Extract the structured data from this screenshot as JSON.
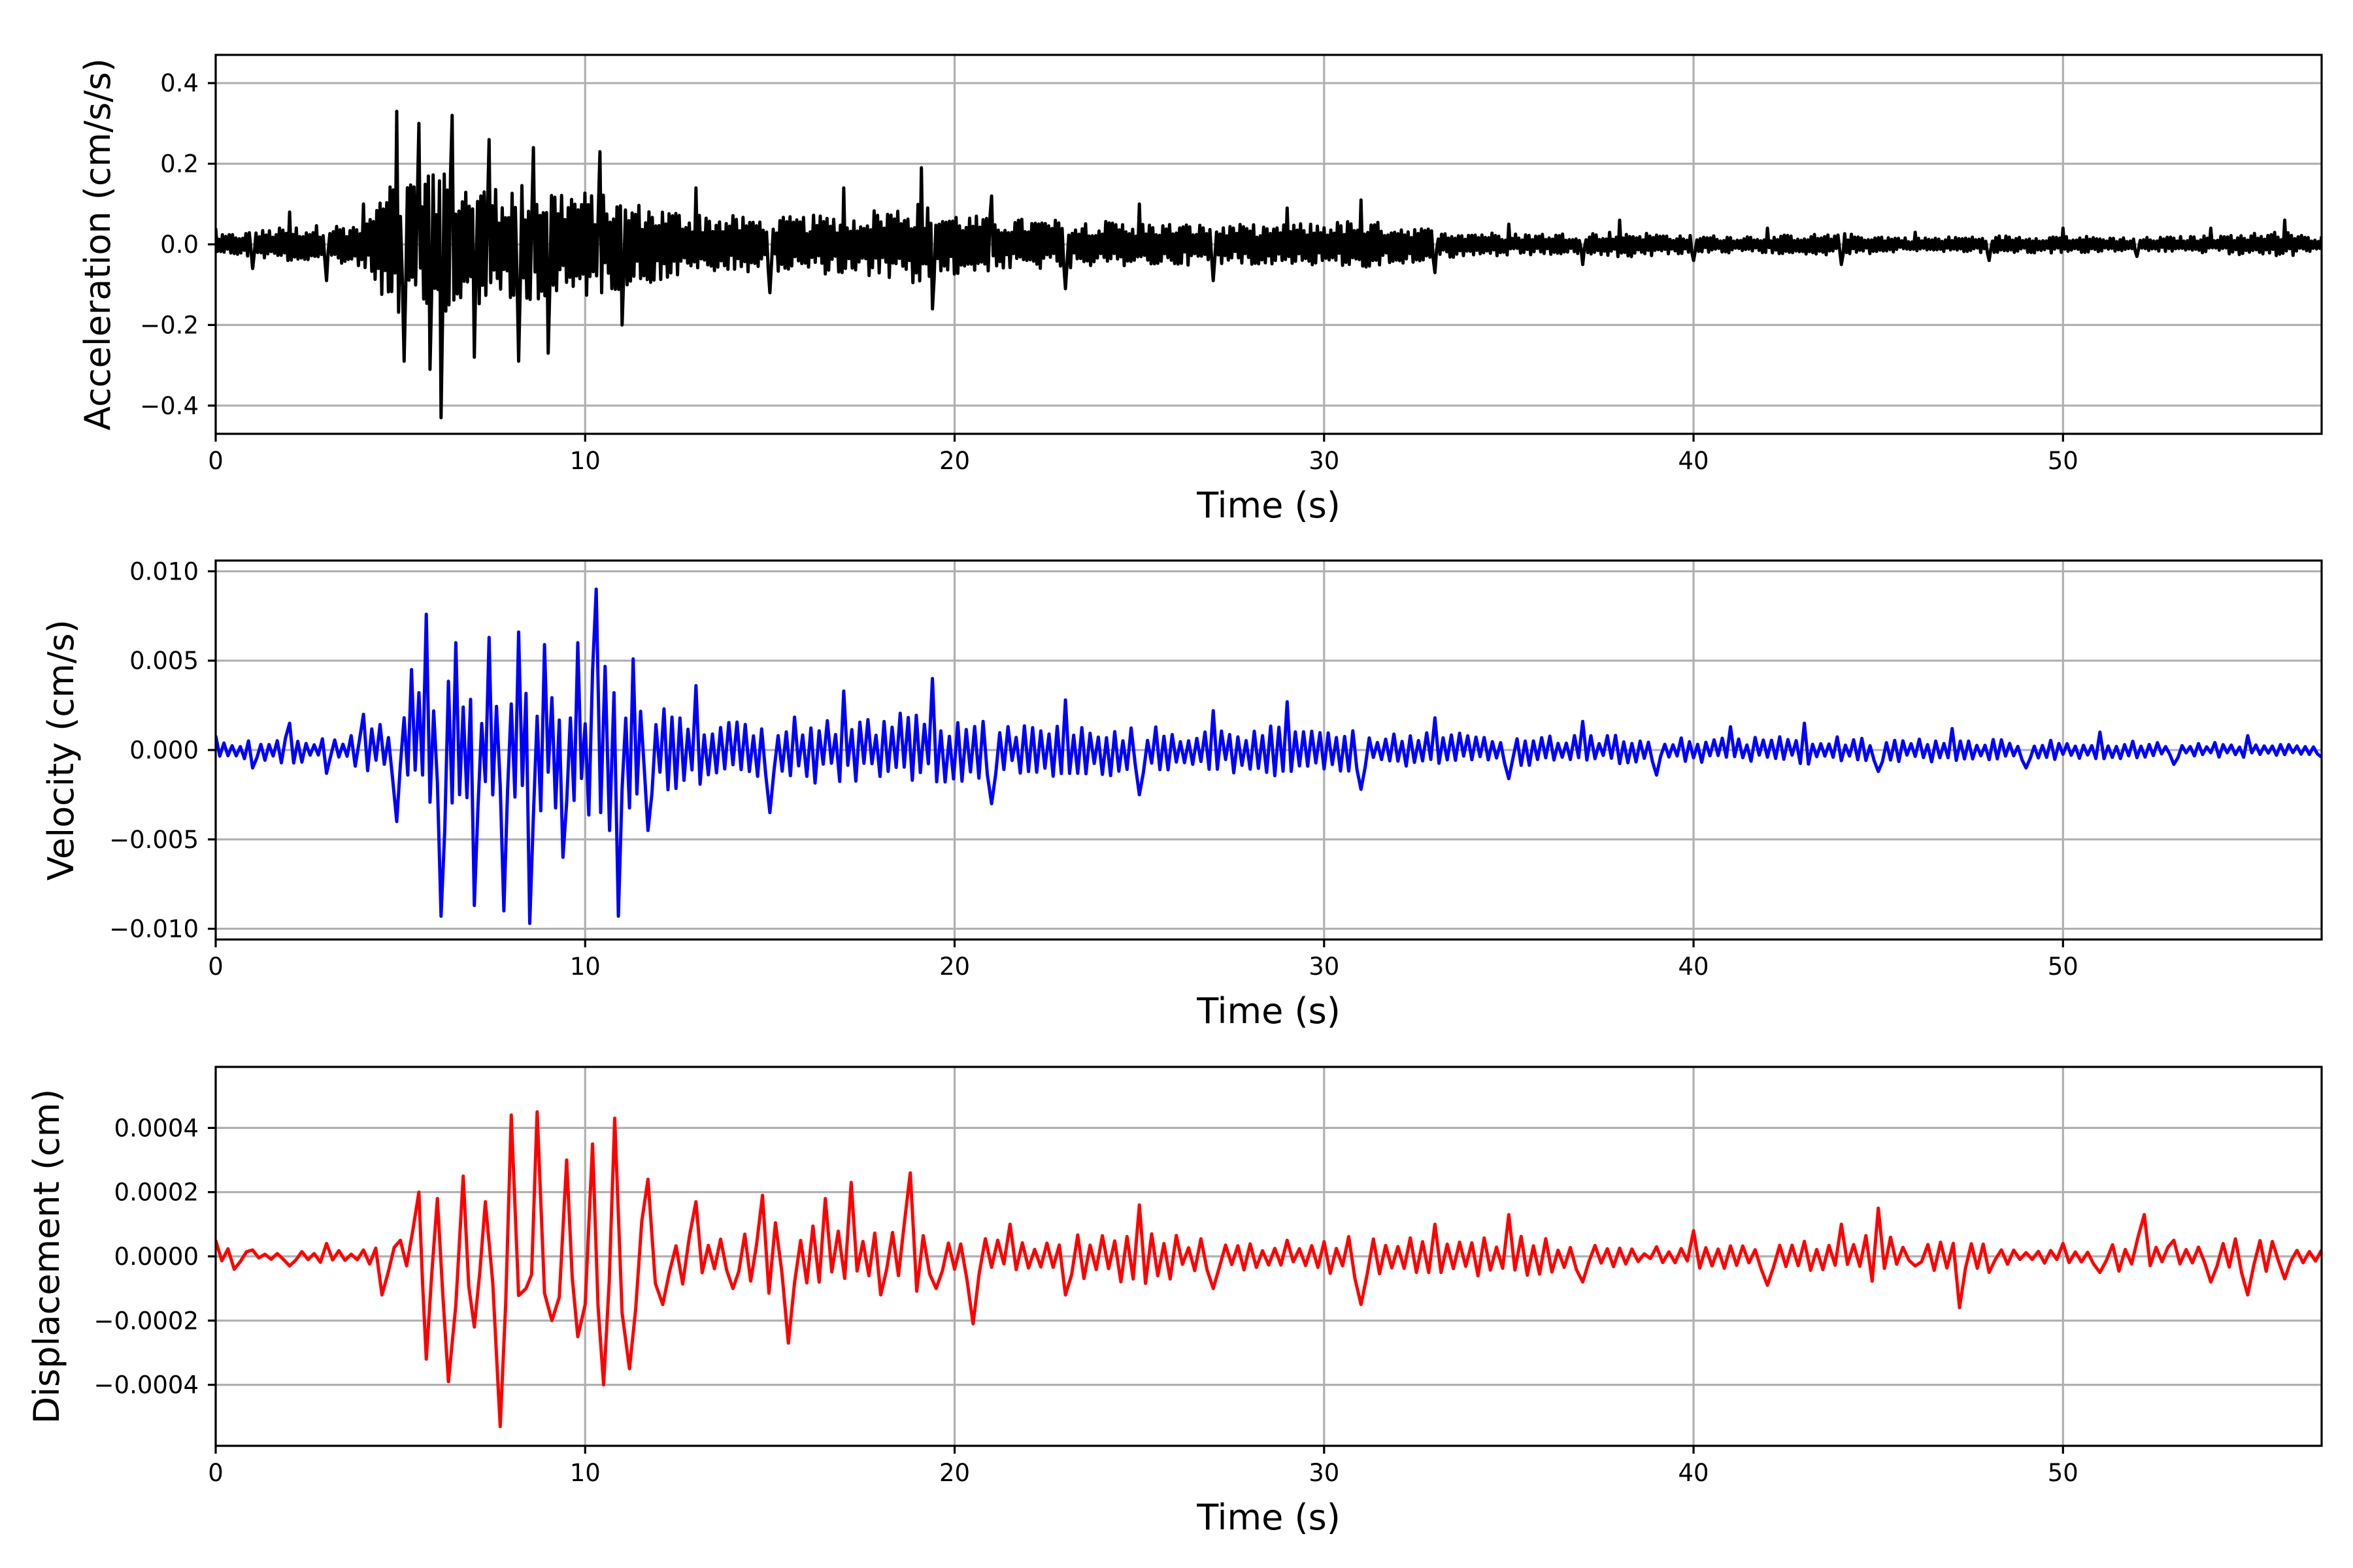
{
  "chart_data": [
    {
      "type": "line",
      "xlabel": "Time (s)",
      "ylabel": "Acceleration (cm/s/s)",
      "xlim": [
        0,
        57
      ],
      "ylim": [
        -0.47,
        0.47
      ],
      "xticks": [
        0,
        10,
        20,
        30,
        40,
        50
      ],
      "xtick_labels": [
        "0",
        "10",
        "20",
        "30",
        "40",
        "50"
      ],
      "yticks": [
        -0.4,
        -0.2,
        0.0,
        0.2,
        0.4
      ],
      "ytick_labels": [
        "−0.4",
        "−0.2",
        "0.0",
        "0.2",
        "0.4"
      ],
      "grid": true,
      "color": "#000000",
      "series": [
        {
          "x": [
            0,
            1,
            2,
            3,
            4,
            4.9,
            5.1,
            5.5,
            5.8,
            6.1,
            6.4,
            7.0,
            7.4,
            8.2,
            8.6,
            9.0,
            10.4,
            11.0,
            13.0,
            15.0,
            17.0,
            19.1,
            19.4,
            21.0,
            23.0,
            25.0,
            27.0,
            29.0,
            31.0,
            33.0,
            35.0,
            37.0,
            38.0,
            40.0,
            42.0,
            44.0,
            46.0,
            48.0,
            50.0,
            52.0,
            54.0,
            56.0,
            57.0
          ],
          "y": [
            0.04,
            -0.06,
            0.08,
            -0.09,
            0.1,
            0.33,
            -0.29,
            0.3,
            -0.31,
            -0.43,
            0.32,
            -0.28,
            0.26,
            -0.29,
            0.24,
            -0.27,
            0.23,
            -0.2,
            0.14,
            -0.12,
            0.14,
            0.19,
            -0.16,
            0.12,
            -0.11,
            0.1,
            -0.09,
            0.09,
            0.11,
            -0.07,
            0.05,
            -0.05,
            0.06,
            -0.04,
            0.04,
            -0.05,
            0.03,
            -0.04,
            0.04,
            -0.03,
            0.04,
            0.06,
            0.02
          ]
        }
      ]
    },
    {
      "type": "line",
      "xlabel": "Time (s)",
      "ylabel": "Velocity (cm/s)",
      "xlim": [
        0,
        57
      ],
      "ylim": [
        -0.0106,
        0.0106
      ],
      "xticks": [
        0,
        10,
        20,
        30,
        40,
        50
      ],
      "xtick_labels": [
        "0",
        "10",
        "20",
        "30",
        "40",
        "50"
      ],
      "yticks": [
        -0.01,
        -0.005,
        0.0,
        0.005,
        0.01
      ],
      "ytick_labels": [
        "−0.010",
        "−0.005",
        "0.000",
        "0.005",
        "0.010"
      ],
      "grid": true,
      "color": "#0000ff",
      "series": [
        {
          "x": [
            0,
            1,
            2,
            3,
            4,
            4.9,
            5.3,
            5.7,
            6.1,
            6.5,
            7.0,
            7.4,
            7.8,
            8.2,
            8.5,
            8.9,
            9.4,
            9.8,
            10.3,
            10.9,
            11.3,
            11.7,
            13.0,
            15.0,
            17.0,
            19.4,
            21.0,
            23.0,
            25.0,
            27.0,
            29.0,
            31.0,
            33.0,
            35.0,
            37.0,
            39.0,
            41.0,
            43.0,
            45.0,
            47.0,
            49.0,
            51.0,
            53.0,
            55.0,
            57.0
          ],
          "y": [
            0.0008,
            -0.001,
            0.0015,
            -0.0013,
            0.002,
            -0.004,
            0.0045,
            0.0076,
            -0.0093,
            0.006,
            -0.0087,
            0.0063,
            -0.009,
            0.0066,
            -0.0097,
            0.0059,
            -0.006,
            0.006,
            0.009,
            -0.0093,
            0.0051,
            -0.0045,
            0.0036,
            -0.0035,
            0.0033,
            0.004,
            -0.003,
            0.0028,
            -0.0025,
            0.0022,
            0.0027,
            -0.0022,
            0.0018,
            -0.0016,
            0.0016,
            -0.0014,
            0.0013,
            0.0015,
            -0.0012,
            0.0012,
            -0.001,
            0.001,
            -0.0008,
            0.0008,
            -0.0004
          ]
        }
      ]
    },
    {
      "type": "line",
      "xlabel": "Time (s)",
      "ylabel": "Displacement (cm)",
      "xlim": [
        0,
        57
      ],
      "ylim": [
        -0.00059,
        0.00059
      ],
      "xticks": [
        0,
        10,
        20,
        30,
        40,
        50
      ],
      "xtick_labels": [
        "0",
        "10",
        "20",
        "30",
        "40",
        "50"
      ],
      "yticks": [
        -0.0004,
        -0.0002,
        0.0,
        0.0002,
        0.0004
      ],
      "ytick_labels": [
        "−0.0004",
        "−0.0002",
        "0.0000",
        "0.0002",
        "0.0004"
      ],
      "grid": true,
      "color": "#ff0000",
      "series": [
        {
          "x": [
            0,
            0.5,
            1,
            2,
            3,
            4,
            4.5,
            5,
            5.5,
            5.7,
            6.0,
            6.3,
            6.7,
            7.0,
            7.3,
            7.7,
            8.0,
            8.4,
            8.7,
            9.1,
            9.5,
            9.8,
            10.2,
            10.5,
            10.8,
            11.2,
            11.7,
            12.1,
            13.0,
            14.0,
            14.8,
            15.5,
            16.5,
            17.2,
            18.0,
            18.8,
            19.5,
            20.5,
            21.5,
            23.0,
            25.0,
            27.0,
            29.0,
            31.0,
            33.0,
            35.0,
            37.0,
            39.0,
            40.0,
            42.0,
            44.0,
            45.0,
            46.0,
            47.2,
            48.0,
            50.0,
            51.0,
            52.2,
            53.0,
            54.0,
            55.0,
            56.0,
            57.0
          ],
          "y": [
            5e-05,
            -4e-05,
            2e-05,
            -3e-05,
            4e-05,
            2e-05,
            -0.00012,
            5e-05,
            0.0002,
            -0.00032,
            0.00018,
            -0.00039,
            0.00025,
            -0.00022,
            0.00017,
            -0.00053,
            0.00044,
            -0.0001,
            0.00045,
            -0.0002,
            0.0003,
            -0.00025,
            0.00035,
            -0.0004,
            0.00043,
            -0.00035,
            0.00024,
            -0.00015,
            0.00017,
            -0.0001,
            0.00019,
            -0.00027,
            0.00018,
            0.00023,
            -0.00012,
            0.00026,
            -0.0001,
            -0.00021,
            0.0001,
            -0.00012,
            0.00016,
            -0.0001,
            5e-05,
            -0.00015,
            0.0001,
            0.00013,
            -8e-05,
            3e-05,
            8e-05,
            -9e-05,
            0.0001,
            0.00015,
            -3e-05,
            -0.00016,
            -5e-05,
            4e-05,
            -5e-05,
            0.00013,
            5e-05,
            -8e-05,
            -0.00012,
            -7e-05,
            2e-05
          ]
        }
      ]
    }
  ]
}
